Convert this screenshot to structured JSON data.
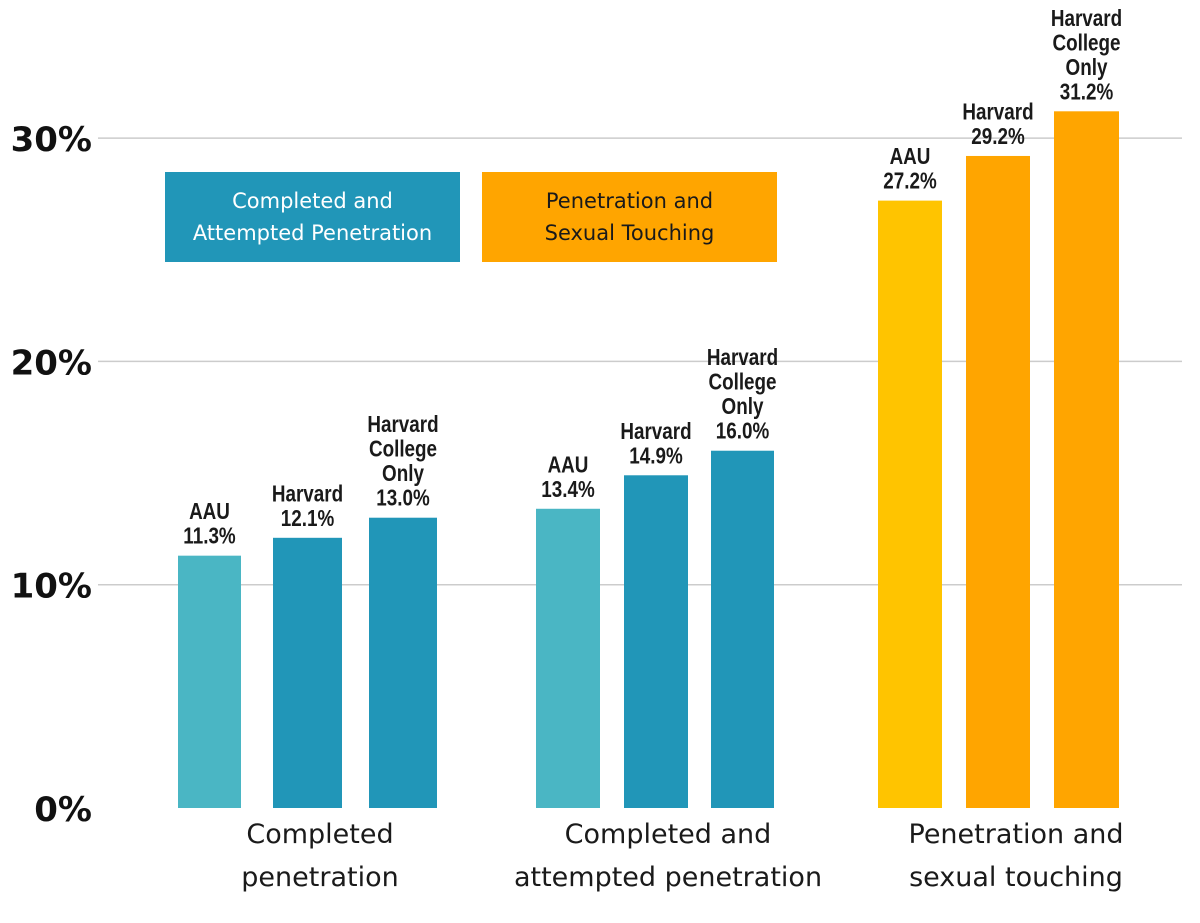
{
  "chart_data": {
    "type": "bar",
    "y_ticks": [
      "0%",
      "10%",
      "20%",
      "30%"
    ],
    "ylim": [
      0,
      30
    ],
    "grid": true,
    "legend": [
      {
        "lines": [
          "Completed and",
          "Attempted Penetration"
        ],
        "color": "#2196B8"
      },
      {
        "lines": [
          "Penetration and",
          "Sexual Touching"
        ],
        "color": "#FFA500"
      }
    ],
    "groups": [
      {
        "category": [
          "Completed",
          "penetration"
        ],
        "bars": [
          {
            "label": [
              "AAU",
              "11.3%"
            ],
            "value": 11.3,
            "color": "#4AB6C4"
          },
          {
            "label": [
              "Harvard",
              "12.1%"
            ],
            "value": 12.1,
            "color": "#2196B8"
          },
          {
            "label": [
              "Harvard",
              "College",
              "Only",
              "13.0%"
            ],
            "value": 13.0,
            "color": "#2196B8"
          }
        ]
      },
      {
        "category": [
          "Completed and",
          "attempted penetration"
        ],
        "bars": [
          {
            "label": [
              "AAU",
              "13.4%"
            ],
            "value": 13.4,
            "color": "#4AB6C4"
          },
          {
            "label": [
              "Harvard",
              "14.9%"
            ],
            "value": 14.9,
            "color": "#2196B8"
          },
          {
            "label": [
              "Harvard",
              "College",
              "Only",
              "16.0%"
            ],
            "value": 16.0,
            "color": "#2196B8"
          }
        ]
      },
      {
        "category": [
          "Penetration and",
          "sexual touching"
        ],
        "bars": [
          {
            "label": [
              "AAU",
              "27.2%"
            ],
            "value": 27.2,
            "color": "#FFC400"
          },
          {
            "label": [
              "Harvard",
              "29.2%"
            ],
            "value": 29.2,
            "color": "#FFA500"
          },
          {
            "label": [
              "Harvard",
              "College",
              "Only",
              "31.2%"
            ],
            "value": 31.2,
            "color": "#FFA500"
          }
        ]
      }
    ]
  }
}
